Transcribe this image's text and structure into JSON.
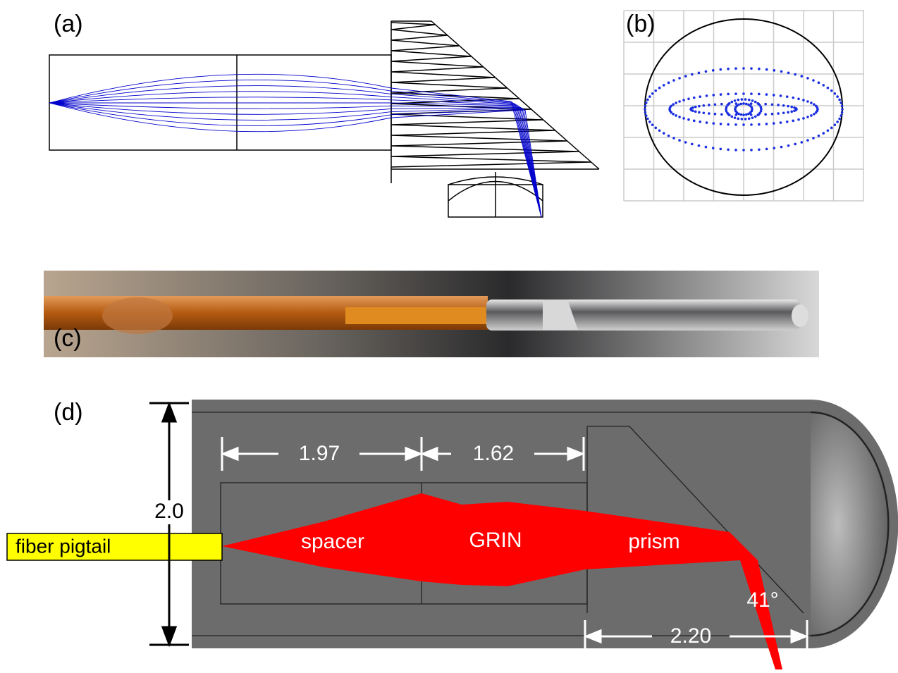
{
  "panels": [
    {
      "label": "(a)"
    },
    {
      "label": "(b)"
    },
    {
      "label": "(c)"
    },
    {
      "label": "(d)"
    }
  ],
  "dimensions": {
    "spacer_length": "1.97",
    "grin_length": "1.62",
    "diameter": "2.0",
    "prism_length": "2.20",
    "angle": "41°"
  },
  "labels": {
    "fiber": "fiber pigtail",
    "spacer": "spacer",
    "grin": "GRIN",
    "prism": "prism"
  }
}
